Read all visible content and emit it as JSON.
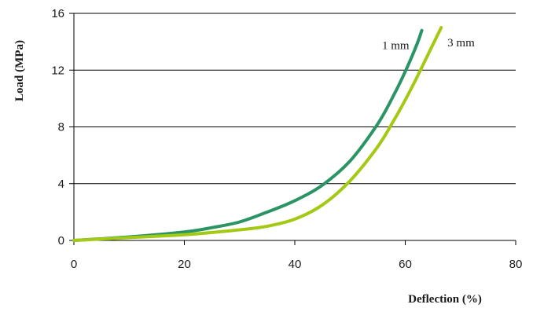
{
  "chart_data": {
    "type": "line",
    "xlabel": "Deflection (%)",
    "ylabel": "Load (MPa)",
    "xlim": [
      0,
      80
    ],
    "ylim": [
      0,
      16
    ],
    "x_ticks": [
      0,
      20,
      40,
      60,
      80
    ],
    "y_ticks": [
      0,
      4,
      8,
      12,
      16
    ],
    "grid": "horizontal",
    "series": [
      {
        "name": "1 mm",
        "color": "#2a9464",
        "x": [
          0,
          10,
          20,
          25,
          30,
          35,
          40,
          45,
          50,
          55,
          58,
          60,
          62,
          63
        ],
        "y": [
          0,
          0.25,
          0.6,
          0.9,
          1.3,
          2.0,
          2.8,
          3.9,
          5.6,
          8.2,
          10.3,
          11.9,
          13.7,
          14.8
        ]
      },
      {
        "name": "3 mm",
        "color": "#a3c914",
        "x": [
          0,
          10,
          20,
          30,
          35,
          40,
          45,
          50,
          55,
          58,
          60,
          62,
          64,
          66.5
        ],
        "y": [
          0,
          0.2,
          0.4,
          0.75,
          1.0,
          1.5,
          2.5,
          4.2,
          6.6,
          8.5,
          9.9,
          11.4,
          13.0,
          15.0
        ]
      }
    ]
  }
}
